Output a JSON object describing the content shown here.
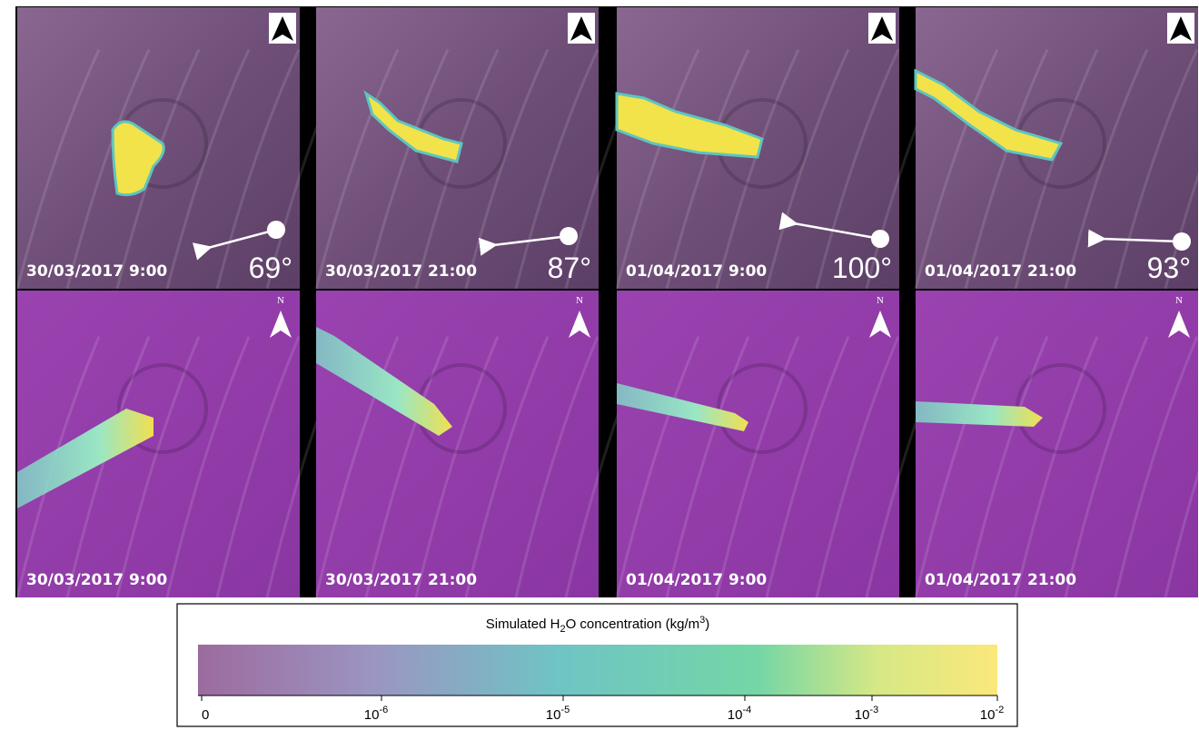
{
  "top_row": {
    "panels": [
      {
        "date": "30/03/2017 9:00",
        "angle": "69°"
      },
      {
        "date": "30/03/2017 21:00",
        "angle": "87°"
      },
      {
        "date": "01/04/2017 9:00",
        "angle": "100°"
      },
      {
        "date": "01/04/2017 21:00",
        "angle": "93°"
      }
    ]
  },
  "bottom_row": {
    "panels": [
      {
        "date": "30/03/2017 9:00",
        "north": "N"
      },
      {
        "date": "30/03/2017 21:00",
        "north": "N"
      },
      {
        "date": "01/04/2017 9:00",
        "north": "N"
      },
      {
        "date": "01/04/2017 21:00",
        "north": "N"
      }
    ]
  },
  "legend": {
    "title": {
      "pre": "Simulated H",
      "sub": "2",
      "mid": "O concentration (kg/m",
      "sup": "3",
      "post": ")"
    },
    "ticks": [
      {
        "base": "0"
      },
      {
        "base": "10",
        "exp": "-6"
      },
      {
        "base": "10",
        "exp": "-5"
      },
      {
        "base": "10",
        "exp": "-4"
      },
      {
        "base": "10",
        "exp": "-3"
      },
      {
        "base": "10",
        "exp": "-2"
      }
    ]
  }
}
